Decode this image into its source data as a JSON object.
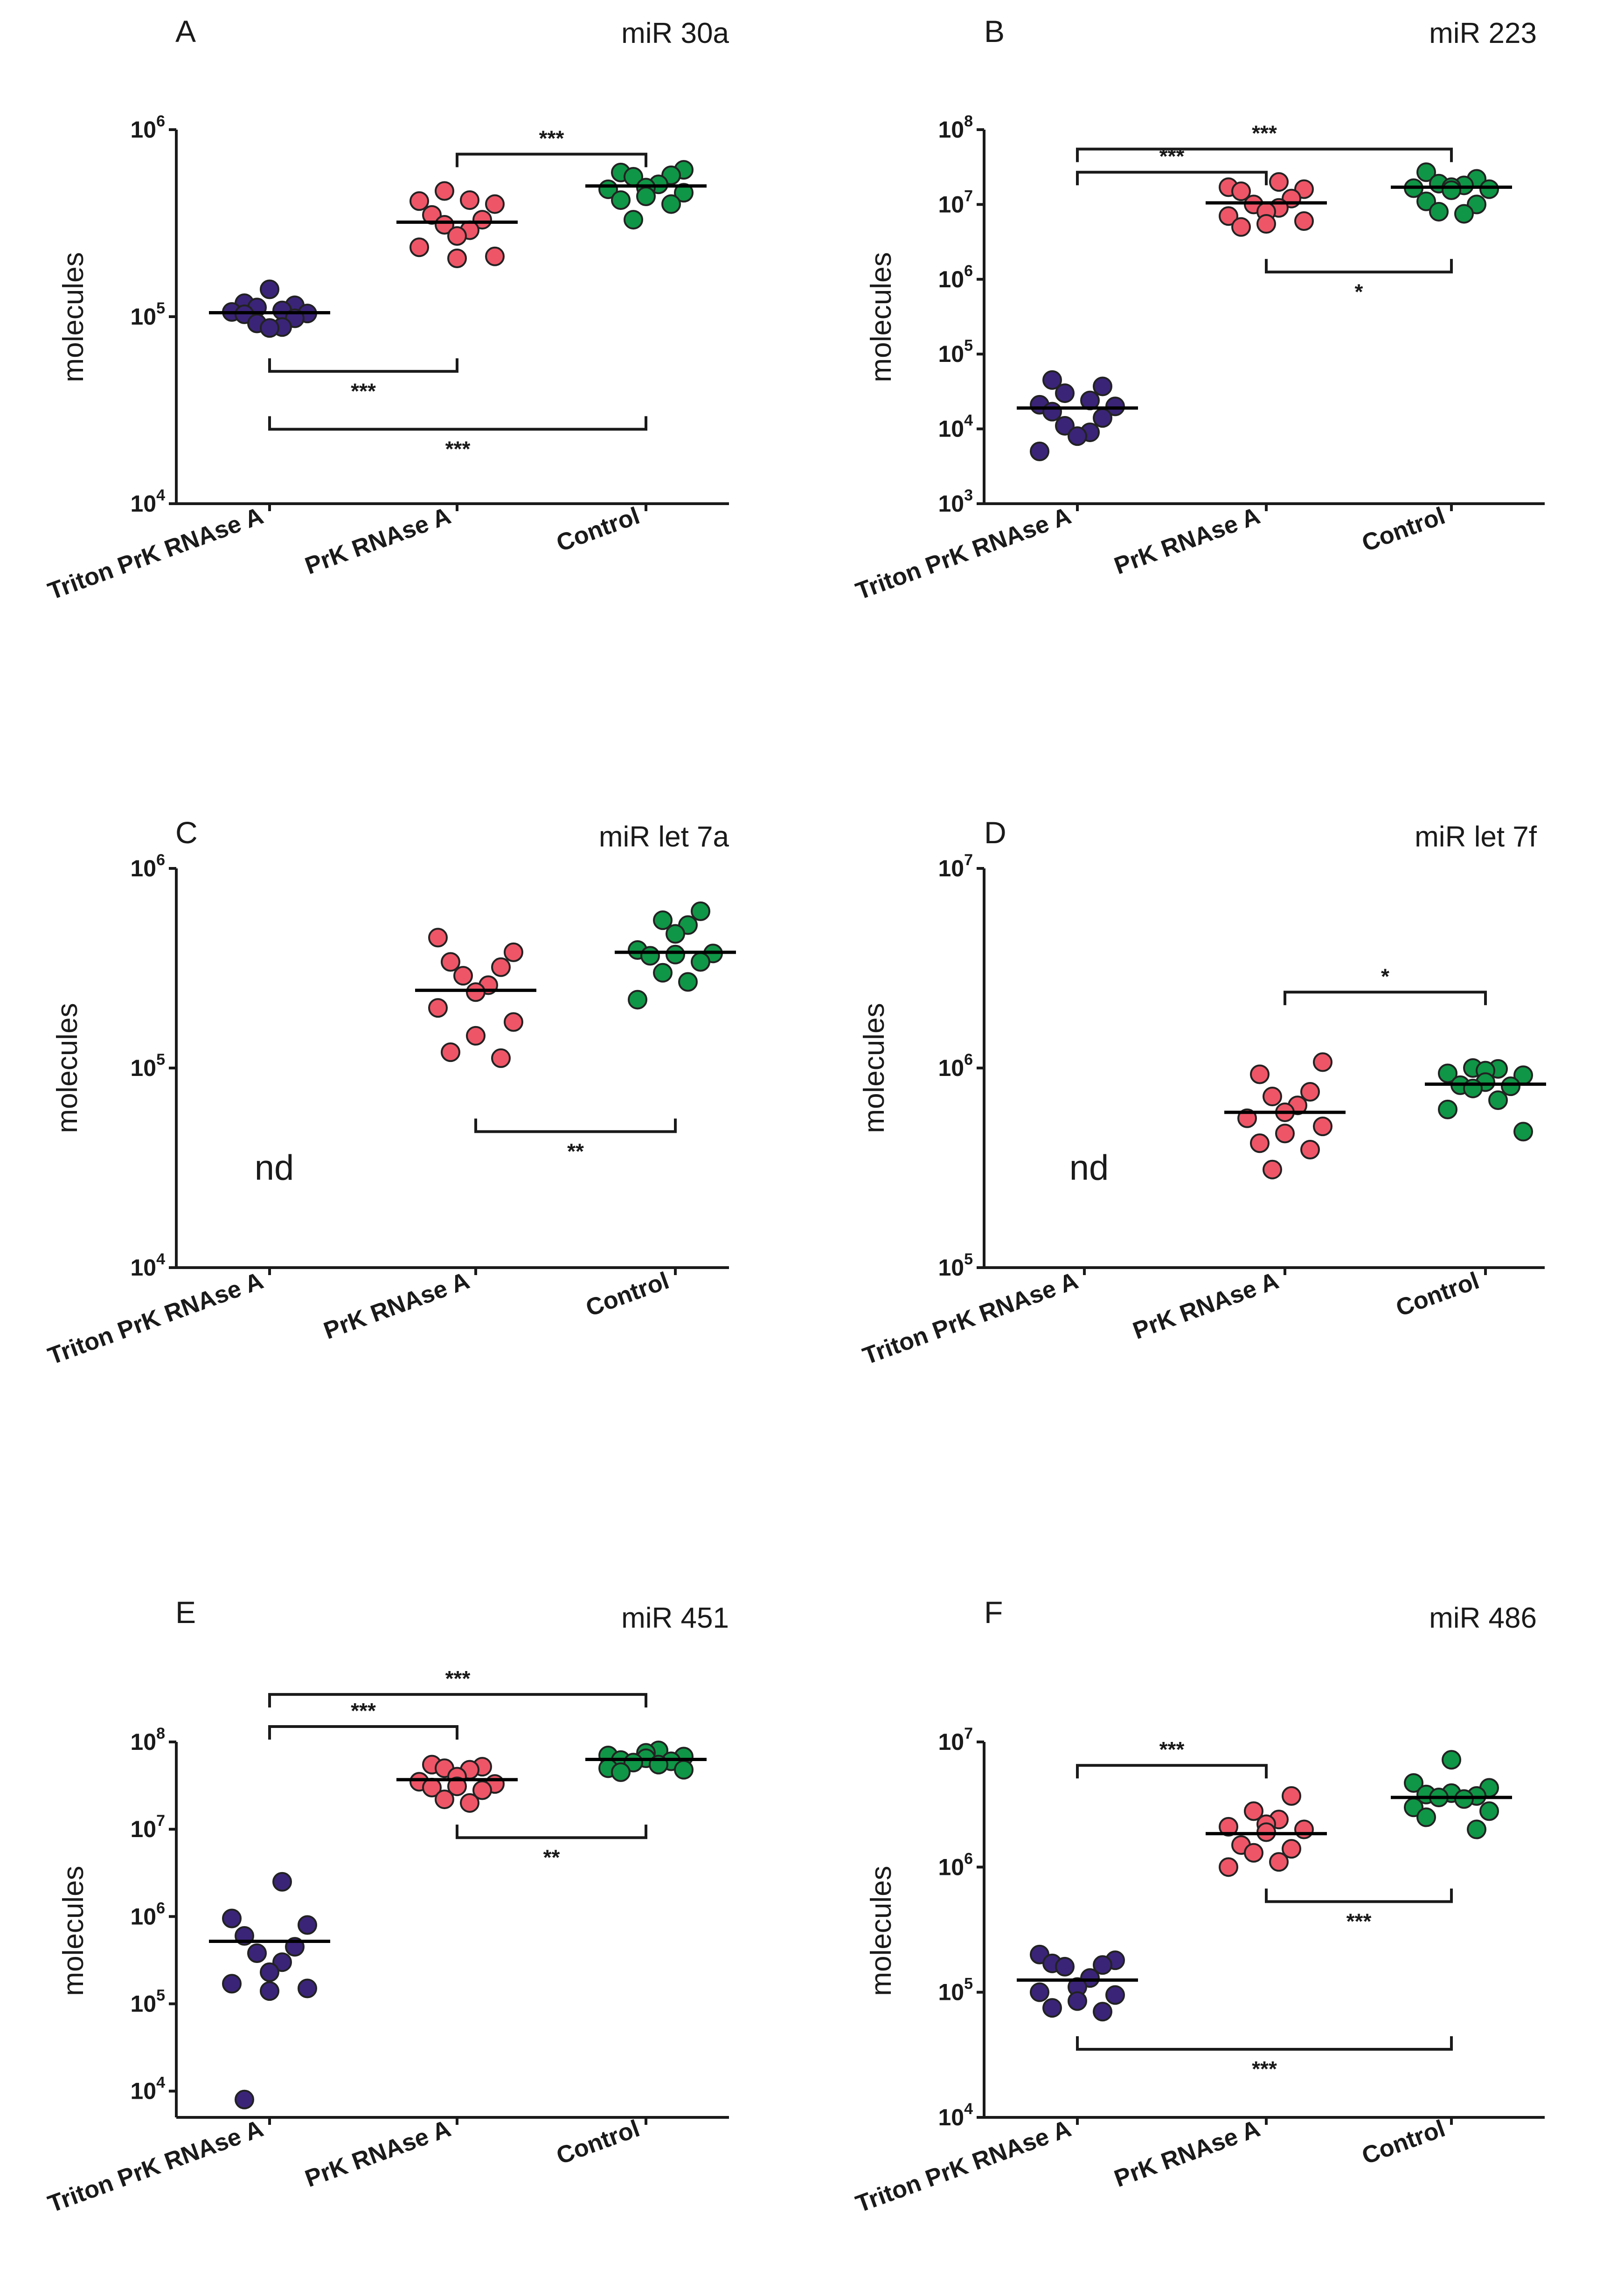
{
  "chart_data": [
    {
      "panel": "A",
      "type": "scatter",
      "title": "miR 30a",
      "ylabel": "molecules",
      "yscale": "log",
      "ylim": [
        10000,
        1000000
      ],
      "ytick_exponents": [
        4,
        5,
        6
      ],
      "categories": [
        "Triton PrK RNAse A",
        "PrK RNAse A",
        "Control"
      ],
      "series": [
        {
          "name": "Triton PrK RNAse A",
          "color": "#3a2478",
          "median": 105000,
          "values": [
            140000,
            118000,
            115000,
            112000,
            108000,
            106000,
            104000,
            103000,
            98000,
            92000,
            88000,
            87000
          ]
        },
        {
          "name": "PrK RNAse A",
          "color": "#ee5567",
          "median": 320000,
          "values": [
            470000,
            420000,
            415000,
            400000,
            350000,
            330000,
            310000,
            290000,
            270000,
            235000,
            210000,
            205000
          ]
        },
        {
          "name": "Control",
          "color": "#0f9646",
          "median": 500000,
          "values": [
            610000,
            590000,
            570000,
            560000,
            510000,
            490000,
            480000,
            460000,
            440000,
            420000,
            400000,
            330000
          ]
        }
      ],
      "not_detected": [],
      "comparisons": [
        {
          "from": "PrK RNAse A",
          "to": "Control",
          "label": "***",
          "y": 740000,
          "side": "above"
        },
        {
          "from": "Triton PrK RNAse A",
          "to": "PrK RNAse A",
          "label": "***",
          "y": 51000,
          "side": "below"
        },
        {
          "from": "Triton PrK RNAse A",
          "to": "Control",
          "label": "***",
          "y": 25000,
          "side": "below"
        }
      ]
    },
    {
      "panel": "B",
      "type": "scatter",
      "title": "miR 223",
      "ylabel": "molecules",
      "yscale": "log",
      "ylim": [
        1000,
        100000000
      ],
      "ytick_exponents": [
        3,
        4,
        5,
        6,
        7,
        8
      ],
      "categories": [
        "Triton PrK RNAse A",
        "PrK RNAse A",
        "Control"
      ],
      "series": [
        {
          "name": "Triton PrK RNAse A",
          "color": "#3a2478",
          "median": 19000,
          "values": [
            45000,
            37000,
            30000,
            24000,
            21000,
            20000,
            17000,
            14000,
            11000,
            9000,
            8000,
            5000
          ]
        },
        {
          "name": "PrK RNAse A",
          "color": "#ee5567",
          "median": 10500000,
          "values": [
            20000000,
            17000000,
            16000000,
            15000000,
            12000000,
            10000000,
            9000000,
            8000000,
            7000000,
            6000000,
            5500000,
            5000000
          ]
        },
        {
          "name": "Control",
          "color": "#0f9646",
          "median": 17000000,
          "values": [
            27000000,
            22000000,
            19000000,
            18000000,
            17000000,
            16500000,
            16000000,
            15500000,
            11000000,
            10000000,
            8000000,
            7500000
          ]
        }
      ],
      "not_detected": [],
      "comparisons": [
        {
          "from": "Triton PrK RNAse A",
          "to": "Control",
          "label": "***",
          "y": 55000000,
          "side": "above"
        },
        {
          "from": "Triton PrK RNAse A",
          "to": "PrK RNAse A",
          "label": "***",
          "y": 27000000,
          "side": "above"
        },
        {
          "from": "PrK RNAse A",
          "to": "Control",
          "label": "*",
          "y": 1250000,
          "side": "below"
        }
      ]
    },
    {
      "panel": "C",
      "type": "scatter",
      "title": "miR let 7a",
      "ylabel": "molecules",
      "yscale": "log",
      "ylim": [
        10000,
        1000000
      ],
      "ytick_exponents": [
        4,
        5,
        6
      ],
      "categories": [
        "Triton PrK RNAse A",
        "PrK RNAse A",
        "Control"
      ],
      "series": [
        {
          "name": "Triton PrK RNAse A",
          "color": "#3a2478",
          "median": null,
          "values": []
        },
        {
          "name": "PrK RNAse A",
          "color": "#ee5567",
          "median": 245000,
          "values": [
            450000,
            380000,
            340000,
            320000,
            290000,
            260000,
            240000,
            200000,
            170000,
            145000,
            120000,
            112000
          ]
        },
        {
          "name": "Control",
          "color": "#0f9646",
          "median": 380000,
          "values": [
            610000,
            550000,
            520000,
            470000,
            390000,
            375000,
            370000,
            365000,
            340000,
            300000,
            270000,
            220000
          ]
        }
      ],
      "not_detected": [
        "Triton PrK RNAse A"
      ],
      "comparisons": [
        {
          "from": "PrK RNAse A",
          "to": "Control",
          "label": "**",
          "y": 48000,
          "side": "below"
        }
      ]
    },
    {
      "panel": "D",
      "type": "scatter",
      "title": "miR let 7f",
      "ylabel": "molecules",
      "yscale": "log",
      "ylim": [
        100000,
        10000000
      ],
      "ytick_exponents": [
        5,
        6,
        7
      ],
      "categories": [
        "Triton PrK RNAse A",
        "PrK RNAse A",
        "Control"
      ],
      "series": [
        {
          "name": "Triton PrK RNAse A",
          "color": "#3a2478",
          "median": null,
          "values": []
        },
        {
          "name": "PrK RNAse A",
          "color": "#ee5567",
          "median": 600000,
          "values": [
            1070000,
            930000,
            760000,
            720000,
            650000,
            600000,
            560000,
            510000,
            470000,
            420000,
            390000,
            310000
          ]
        },
        {
          "name": "Control",
          "color": "#0f9646",
          "median": 830000,
          "values": [
            1000000,
            990000,
            970000,
            940000,
            920000,
            850000,
            820000,
            810000,
            790000,
            690000,
            620000,
            480000
          ]
        }
      ],
      "not_detected": [
        "Triton PrK RNAse A"
      ],
      "comparisons": [
        {
          "from": "PrK RNAse A",
          "to": "Control",
          "label": "*",
          "y": 2400000,
          "side": "above"
        }
      ]
    },
    {
      "panel": "E",
      "type": "scatter",
      "title": "miR 451",
      "ylabel": "molecules",
      "yscale": "log",
      "ylim": [
        5000,
        100000000
      ],
      "ytick_exponents": [
        4,
        5,
        6,
        7,
        8
      ],
      "categories": [
        "Triton PrK RNAse A",
        "PrK RNAse A",
        "Control"
      ],
      "series": [
        {
          "name": "Triton PrK RNAse A",
          "color": "#3a2478",
          "median": 520000,
          "values": [
            2500000,
            950000,
            800000,
            600000,
            450000,
            380000,
            300000,
            230000,
            170000,
            150000,
            140000,
            8000
          ]
        },
        {
          "name": "PrK RNAse A",
          "color": "#ee5567",
          "median": 37000000,
          "values": [
            55000000,
            52000000,
            50000000,
            48000000,
            40000000,
            35000000,
            33000000,
            31000000,
            30000000,
            28000000,
            22000000,
            20000000
          ]
        },
        {
          "name": "Control",
          "color": "#0f9646",
          "median": 63000000,
          "values": [
            80000000,
            75000000,
            70000000,
            68000000,
            65000000,
            62000000,
            60000000,
            58000000,
            55000000,
            50000000,
            48000000,
            45000000
          ]
        }
      ],
      "not_detected": [],
      "comparisons": [
        {
          "from": "Triton PrK RNAse A",
          "to": "Control",
          "label": "***",
          "y": 350000000,
          "side": "above"
        },
        {
          "from": "Triton PrK RNAse A",
          "to": "PrK RNAse A",
          "label": "***",
          "y": 150000000,
          "side": "above"
        },
        {
          "from": "PrK RNAse A",
          "to": "Control",
          "label": "**",
          "y": 8000000,
          "side": "below"
        }
      ]
    },
    {
      "panel": "F",
      "type": "scatter",
      "title": "miR 486",
      "ylabel": "molecules",
      "yscale": "log",
      "ylim": [
        10000,
        10000000
      ],
      "ytick_exponents": [
        4,
        5,
        6,
        7
      ],
      "categories": [
        "Triton PrK RNAse A",
        "PrK RNAse A",
        "Control"
      ],
      "series": [
        {
          "name": "Triton PrK RNAse A",
          "color": "#3a2478",
          "median": 125000,
          "values": [
            200000,
            180000,
            170000,
            165000,
            160000,
            130000,
            110000,
            100000,
            95000,
            85000,
            75000,
            70000
          ]
        },
        {
          "name": "PrK RNAse A",
          "color": "#ee5567",
          "median": 1850000,
          "values": [
            3700000,
            2800000,
            2400000,
            2200000,
            2100000,
            2000000,
            1900000,
            1500000,
            1400000,
            1300000,
            1100000,
            1000000
          ]
        },
        {
          "name": "Control",
          "color": "#0f9646",
          "median": 3600000,
          "values": [
            7200000,
            4700000,
            4300000,
            3900000,
            3800000,
            3700000,
            3600000,
            3500000,
            3000000,
            2800000,
            2500000,
            2000000
          ]
        }
      ],
      "not_detected": [],
      "comparisons": [
        {
          "from": "Triton PrK RNAse A",
          "to": "PrK RNAse A",
          "label": "***",
          "y": 6500000,
          "side": "above"
        },
        {
          "from": "PrK RNAse A",
          "to": "Control",
          "label": "***",
          "y": 530000,
          "side": "below"
        },
        {
          "from": "Triton PrK RNAse A",
          "to": "Control",
          "label": "***",
          "y": 35000,
          "side": "below"
        }
      ]
    }
  ],
  "nd_label": "nd"
}
